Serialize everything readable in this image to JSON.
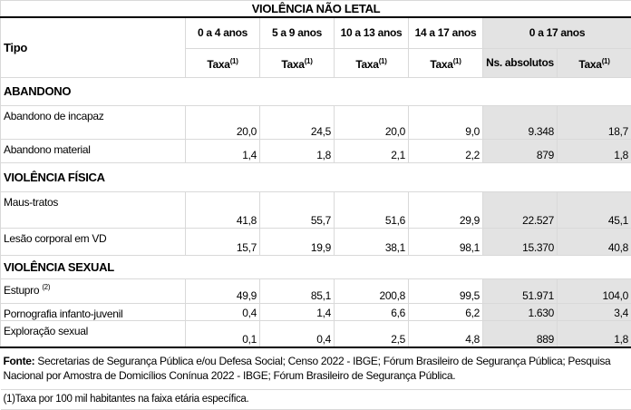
{
  "title": "VIOLÊNCIA NÃO LETAL",
  "header": {
    "tipo": "Tipo",
    "age_groups": [
      "0 a 4 anos",
      "5 a 9 anos",
      "10 a 13 anos",
      "14 a 17 anos"
    ],
    "total_group": "0 a 17 anos",
    "taxa": "Taxa",
    "taxa_note": "(1)",
    "ns_absolutos": "Ns. absolutos"
  },
  "sections": [
    {
      "name": "ABANDONO",
      "rows": [
        {
          "tipo": "Abandono de incapaz",
          "note": "",
          "values": [
            "20,0",
            "24,5",
            "20,0",
            "9,0",
            "9.348",
            "18,7"
          ]
        },
        {
          "tipo": "Abandono material",
          "note": "",
          "values": [
            "1,4",
            "1,8",
            "2,1",
            "2,2",
            "879",
            "1,8"
          ]
        }
      ]
    },
    {
      "name": "VIOLÊNCIA FÍSICA",
      "rows": [
        {
          "tipo": "Maus-tratos",
          "note": "",
          "values": [
            "41,8",
            "55,7",
            "51,6",
            "29,9",
            "22.527",
            "45,1"
          ]
        },
        {
          "tipo": "Lesão corporal em VD",
          "note": "",
          "values": [
            "15,7",
            "19,9",
            "38,1",
            "98,1",
            "15.370",
            "40,8"
          ]
        }
      ]
    },
    {
      "name": "VIOLÊNCIA SEXUAL",
      "rows": [
        {
          "tipo": "Estupro",
          "note": "(2)",
          "values": [
            "49,9",
            "85,1",
            "200,8",
            "99,5",
            "51.971",
            "104,0"
          ]
        },
        {
          "tipo": "Pornografia infanto-juvenil",
          "note": "",
          "values": [
            "0,4",
            "1,4",
            "6,6",
            "6,2",
            "1.630",
            "3,4"
          ]
        },
        {
          "tipo": "Exploração sexual",
          "note": "",
          "values": [
            "0,1",
            "0,4",
            "2,5",
            "4,8",
            "889",
            "1,8"
          ]
        }
      ]
    }
  ],
  "footer": {
    "fonte_label": "Fonte:",
    "fonte_text": " Secretarias de Segurança Pública e/ou Defesa Social; Censo 2022 - IBGE; Fórum Brasileiro de Segurança Pública; Pesquisa Nacional por Amostra de Domicílios Conínua 2022 - IBGE; Fórum Brasileiro de Segurança Pública.",
    "note1": "(1)Taxa por 100 mil habitantes na faixa etária específica."
  }
}
